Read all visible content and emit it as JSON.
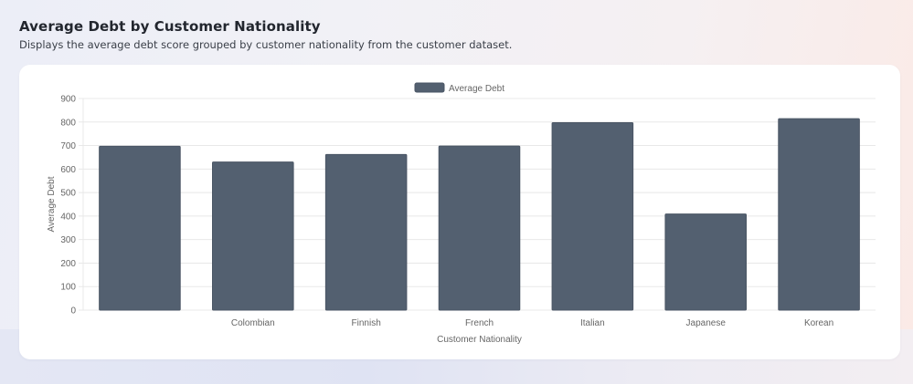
{
  "header": {
    "title": "Average Debt by Customer Nationality",
    "subtitle": "Displays the average debt score grouped by customer nationality from the customer dataset."
  },
  "colors": {
    "bar_fill": "#536070",
    "bar_stroke": "#4a5564",
    "grid": "#e8e8e8"
  },
  "chart_data": {
    "type": "bar",
    "categories": [
      "",
      "Colombian",
      "Finnish",
      "French",
      "Italian",
      "Japanese",
      "Korean"
    ],
    "series": [
      {
        "name": "Average Debt",
        "values": [
          697,
          630,
          662,
          698,
          797,
          409,
          814
        ]
      }
    ],
    "xlabel": "Customer Nationality",
    "ylabel": "Average Debt",
    "ylim": [
      0,
      900
    ],
    "yticks": [
      0,
      100,
      200,
      300,
      400,
      500,
      600,
      700,
      800,
      900
    ],
    "grid": true,
    "legend": "top-center"
  }
}
